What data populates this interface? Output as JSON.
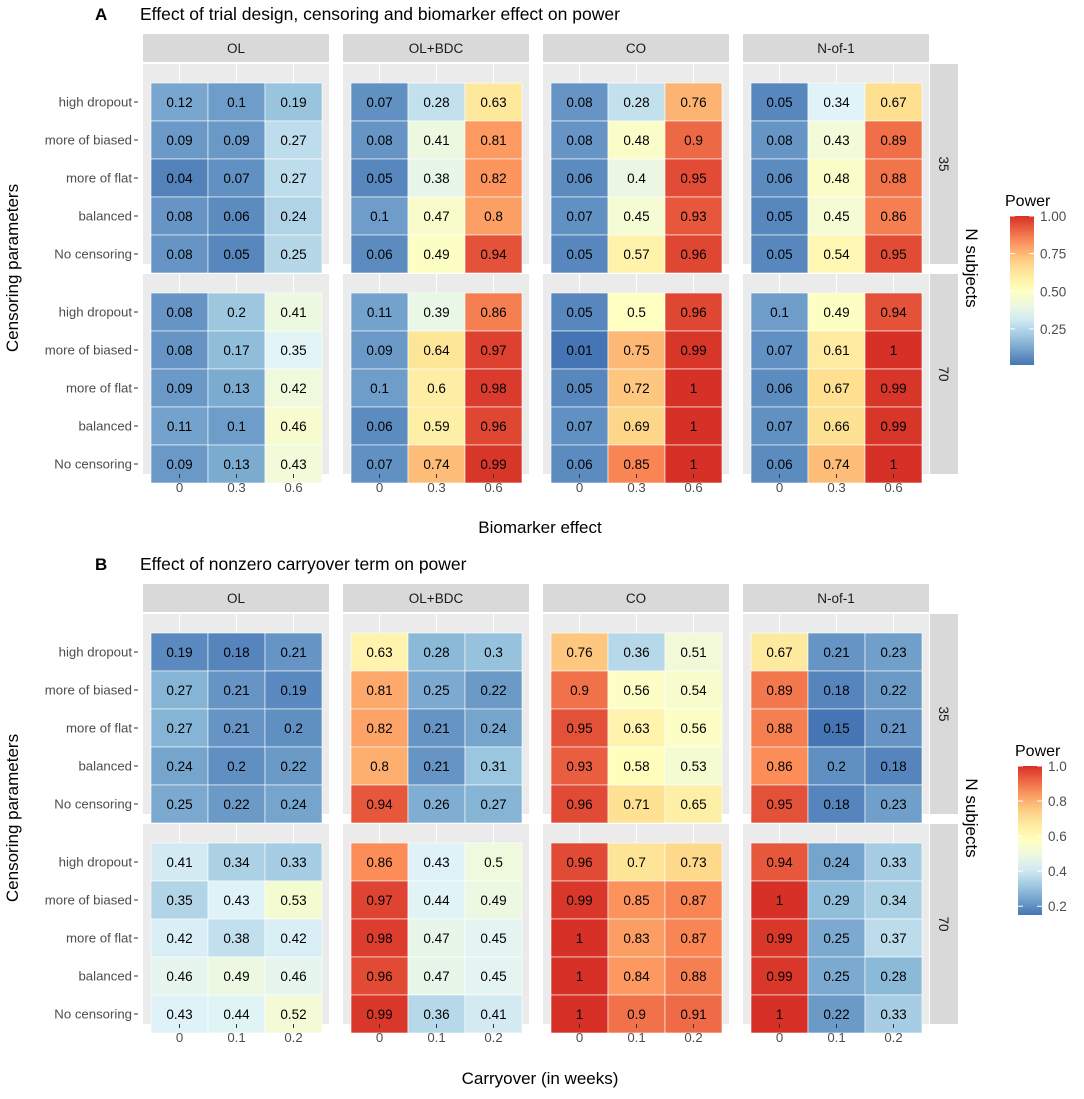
{
  "colors": {
    "panel_bg": "#ebebeb",
    "strip_bg": "#d9d9d9",
    "text_dark": "#1a1a1a",
    "axis_text": "#4d4d4d"
  },
  "chart_data": [
    {
      "type": "heatmap",
      "panel_letter": "A",
      "title": "Effect of trial design, censoring and biomarker effect on power",
      "xlabel": "Biomarker effect",
      "ylabel": "Censoring parameters",
      "facet_row_label": "N subjects",
      "legend_title": "Power",
      "legend_ticks": [
        "0.25",
        "0.50",
        "0.75",
        "1.00"
      ],
      "legend_tick_values": [
        0.25,
        0.5,
        0.75,
        1.0
      ],
      "color_range": [
        0.01,
        1.0
      ],
      "designs": [
        "OL",
        "OL+BDC",
        "CO",
        "N-of-1"
      ],
      "n_subjects": [
        "35",
        "70"
      ],
      "x_categories": [
        "0",
        "0.3",
        "0.6"
      ],
      "y_categories": [
        "high dropout",
        "more of biased",
        "more of flat",
        "balanced",
        "No censoring"
      ],
      "values": {
        "35": {
          "OL": [
            [
              "0.12",
              "0.1",
              "0.19"
            ],
            [
              "0.09",
              "0.09",
              "0.27"
            ],
            [
              "0.04",
              "0.07",
              "0.27"
            ],
            [
              "0.08",
              "0.06",
              "0.24"
            ],
            [
              "0.08",
              "0.05",
              "0.25"
            ]
          ],
          "OL+BDC": [
            [
              "0.07",
              "0.28",
              "0.63"
            ],
            [
              "0.08",
              "0.41",
              "0.81"
            ],
            [
              "0.05",
              "0.38",
              "0.82"
            ],
            [
              "0.1",
              "0.47",
              "0.8"
            ],
            [
              "0.06",
              "0.49",
              "0.94"
            ]
          ],
          "CO": [
            [
              "0.08",
              "0.28",
              "0.76"
            ],
            [
              "0.08",
              "0.48",
              "0.9"
            ],
            [
              "0.06",
              "0.4",
              "0.95"
            ],
            [
              "0.07",
              "0.45",
              "0.93"
            ],
            [
              "0.05",
              "0.57",
              "0.96"
            ]
          ],
          "N-of-1": [
            [
              "0.05",
              "0.34",
              "0.67"
            ],
            [
              "0.08",
              "0.43",
              "0.89"
            ],
            [
              "0.06",
              "0.48",
              "0.88"
            ],
            [
              "0.05",
              "0.45",
              "0.86"
            ],
            [
              "0.05",
              "0.54",
              "0.95"
            ]
          ]
        },
        "70": {
          "OL": [
            [
              "0.08",
              "0.2",
              "0.41"
            ],
            [
              "0.08",
              "0.17",
              "0.35"
            ],
            [
              "0.09",
              "0.13",
              "0.42"
            ],
            [
              "0.11",
              "0.1",
              "0.46"
            ],
            [
              "0.09",
              "0.13",
              "0.43"
            ]
          ],
          "OL+BDC": [
            [
              "0.11",
              "0.39",
              "0.86"
            ],
            [
              "0.09",
              "0.64",
              "0.97"
            ],
            [
              "0.1",
              "0.6",
              "0.98"
            ],
            [
              "0.06",
              "0.59",
              "0.96"
            ],
            [
              "0.07",
              "0.74",
              "0.99"
            ]
          ],
          "CO": [
            [
              "0.05",
              "0.5",
              "0.96"
            ],
            [
              "0.01",
              "0.75",
              "0.99"
            ],
            [
              "0.05",
              "0.72",
              "1"
            ],
            [
              "0.07",
              "0.69",
              "1"
            ],
            [
              "0.06",
              "0.85",
              "1"
            ]
          ],
          "N-of-1": [
            [
              "0.1",
              "0.49",
              "0.94"
            ],
            [
              "0.07",
              "0.61",
              "1"
            ],
            [
              "0.06",
              "0.67",
              "0.99"
            ],
            [
              "0.07",
              "0.66",
              "0.99"
            ],
            [
              "0.06",
              "0.74",
              "1"
            ]
          ]
        }
      }
    },
    {
      "type": "heatmap",
      "panel_letter": "B",
      "title": "Effect of nonzero carryover term on power",
      "xlabel": "Carryover (in weeks)",
      "ylabel": "Censoring parameters",
      "facet_row_label": "N subjects",
      "legend_title": "Power",
      "legend_ticks": [
        "0.2",
        "0.4",
        "0.6",
        "0.8",
        "1.0"
      ],
      "legend_tick_values": [
        0.2,
        0.4,
        0.6,
        0.8,
        1.0
      ],
      "color_range": [
        0.15,
        1.0
      ],
      "designs": [
        "OL",
        "OL+BDC",
        "CO",
        "N-of-1"
      ],
      "n_subjects": [
        "35",
        "70"
      ],
      "x_categories": [
        "0",
        "0.1",
        "0.2"
      ],
      "y_categories": [
        "high dropout",
        "more of biased",
        "more of flat",
        "balanced",
        "No censoring"
      ],
      "values": {
        "35": {
          "OL": [
            [
              "0.19",
              "0.18",
              "0.21"
            ],
            [
              "0.27",
              "0.21",
              "0.19"
            ],
            [
              "0.27",
              "0.21",
              "0.2"
            ],
            [
              "0.24",
              "0.2",
              "0.22"
            ],
            [
              "0.25",
              "0.22",
              "0.24"
            ]
          ],
          "OL+BDC": [
            [
              "0.63",
              "0.28",
              "0.3"
            ],
            [
              "0.81",
              "0.25",
              "0.22"
            ],
            [
              "0.82",
              "0.21",
              "0.24"
            ],
            [
              "0.8",
              "0.21",
              "0.31"
            ],
            [
              "0.94",
              "0.26",
              "0.27"
            ]
          ],
          "CO": [
            [
              "0.76",
              "0.36",
              "0.51"
            ],
            [
              "0.9",
              "0.56",
              "0.54"
            ],
            [
              "0.95",
              "0.63",
              "0.56"
            ],
            [
              "0.93",
              "0.58",
              "0.53"
            ],
            [
              "0.96",
              "0.71",
              "0.65"
            ]
          ],
          "N-of-1": [
            [
              "0.67",
              "0.21",
              "0.23"
            ],
            [
              "0.89",
              "0.18",
              "0.22"
            ],
            [
              "0.88",
              "0.15",
              "0.21"
            ],
            [
              "0.86",
              "0.2",
              "0.18"
            ],
            [
              "0.95",
              "0.18",
              "0.23"
            ]
          ]
        },
        "70": {
          "OL": [
            [
              "0.41",
              "0.34",
              "0.33"
            ],
            [
              "0.35",
              "0.43",
              "0.53"
            ],
            [
              "0.42",
              "0.38",
              "0.42"
            ],
            [
              "0.46",
              "0.49",
              "0.46"
            ],
            [
              "0.43",
              "0.44",
              "0.52"
            ]
          ],
          "OL+BDC": [
            [
              "0.86",
              "0.43",
              "0.5"
            ],
            [
              "0.97",
              "0.44",
              "0.49"
            ],
            [
              "0.98",
              "0.47",
              "0.45"
            ],
            [
              "0.96",
              "0.47",
              "0.45"
            ],
            [
              "0.99",
              "0.36",
              "0.41"
            ]
          ],
          "CO": [
            [
              "0.96",
              "0.7",
              "0.73"
            ],
            [
              "0.99",
              "0.85",
              "0.87"
            ],
            [
              "1",
              "0.83",
              "0.87"
            ],
            [
              "1",
              "0.84",
              "0.88"
            ],
            [
              "1",
              "0.9",
              "0.91"
            ]
          ],
          "N-of-1": [
            [
              "0.94",
              "0.24",
              "0.33"
            ],
            [
              "1",
              "0.29",
              "0.34"
            ],
            [
              "0.99",
              "0.25",
              "0.37"
            ],
            [
              "0.99",
              "0.25",
              "0.28"
            ],
            [
              "1",
              "0.22",
              "0.33"
            ]
          ]
        }
      }
    }
  ]
}
